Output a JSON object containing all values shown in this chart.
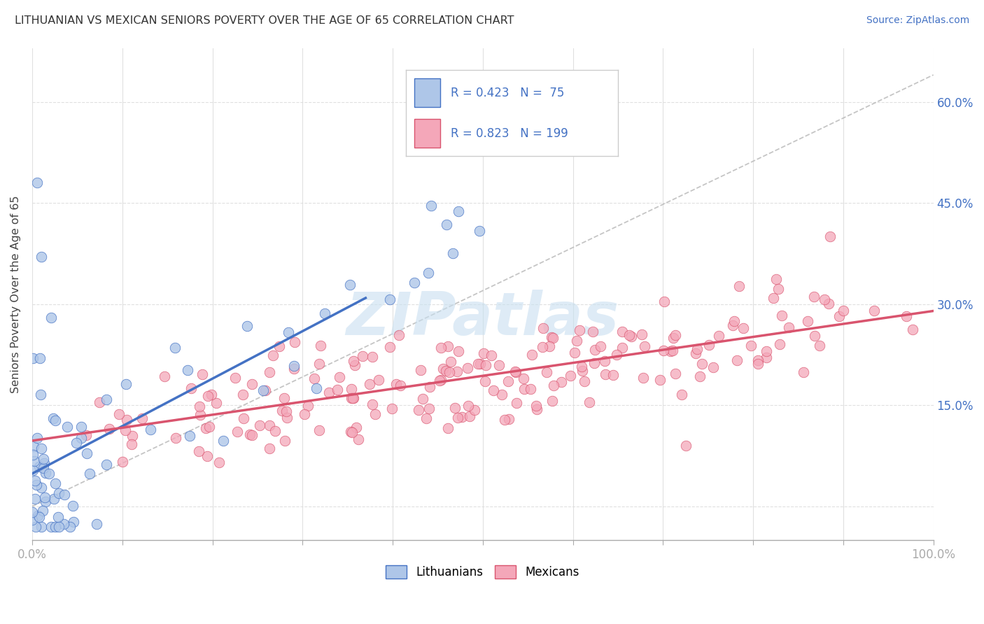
{
  "title": "LITHUANIAN VS MEXICAN SENIORS POVERTY OVER THE AGE OF 65 CORRELATION CHART",
  "source": "Source: ZipAtlas.com",
  "ylabel": "Seniors Poverty Over the Age of 65",
  "xlim": [
    0,
    1.0
  ],
  "ylim": [
    -0.05,
    0.68
  ],
  "xticks": [
    0.0,
    0.1,
    0.2,
    0.3,
    0.4,
    0.5,
    0.6,
    0.7,
    0.8,
    0.9,
    1.0
  ],
  "xticklabels": [
    "0.0%",
    "",
    "",
    "",
    "",
    "",
    "",
    "",
    "",
    "",
    "100.0%"
  ],
  "yticks": [
    0.0,
    0.15,
    0.3,
    0.45,
    0.6
  ],
  "yticklabels": [
    "",
    "15.0%",
    "30.0%",
    "45.0%",
    "60.0%"
  ],
  "lit_R": 0.423,
  "lit_N": 75,
  "mex_R": 0.823,
  "mex_N": 199,
  "lit_color": "#aec6e8",
  "mex_color": "#f4a7b9",
  "lit_line_color": "#4472c4",
  "mex_line_color": "#d9546e",
  "ref_line_color": "#bbbbbb",
  "legend_text_color": "#4472c4",
  "watermark_color": "#c8dff0",
  "background_color": "#ffffff",
  "grid_color": "#dddddd",
  "title_color": "#333333"
}
